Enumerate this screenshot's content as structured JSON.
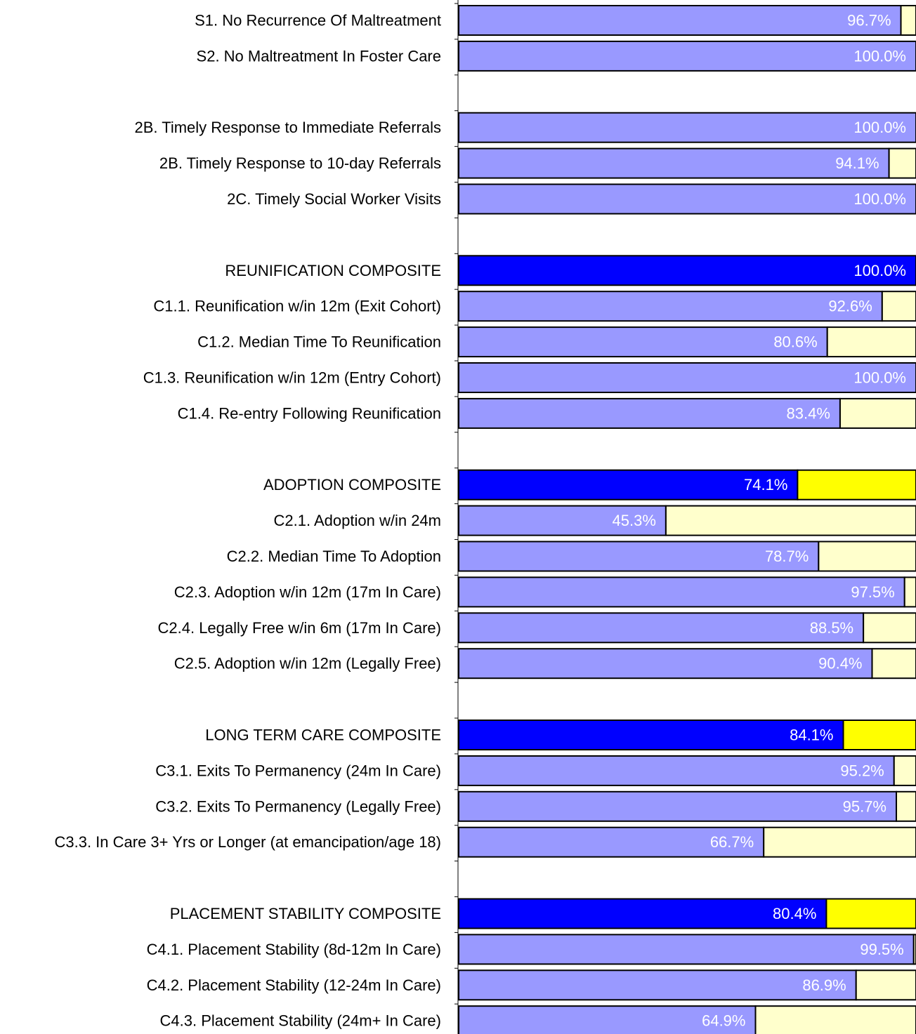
{
  "chart_data": {
    "type": "bar",
    "orientation": "horizontal",
    "stacked": true,
    "xlim": [
      0,
      100
    ],
    "grid": false,
    "legend": "none",
    "colors": {
      "measure_value": "#9999ff",
      "composite_value": "#0000ff",
      "measure_remainder": "#ffffcc",
      "composite_remainder": "#ffff00",
      "measure_label": "#ffffff",
      "composite_label": "#ffffff",
      "category_label": "#000000",
      "bar_border": "#000000"
    },
    "rows": [
      {
        "category": "S1. No Recurrence Of Maltreatment",
        "value": 96.7,
        "label": "96.7%",
        "composite": false
      },
      {
        "category": "S2. No Maltreatment In Foster Care",
        "value": 100.0,
        "label": "100.0%",
        "composite": false
      },
      {
        "gap": true
      },
      {
        "category": "2B. Timely Response to Immediate Referrals",
        "value": 100.0,
        "label": "100.0%",
        "composite": false
      },
      {
        "category": "2B. Timely Response to 10-day Referrals",
        "value": 94.1,
        "label": "94.1%",
        "composite": false
      },
      {
        "category": "2C. Timely Social Worker Visits",
        "value": 100.0,
        "label": "100.0%",
        "composite": false
      },
      {
        "gap": true
      },
      {
        "category": "REUNIFICATION COMPOSITE",
        "value": 100.0,
        "label": "100.0%",
        "composite": true
      },
      {
        "category": "C1.1. Reunification w/in 12m (Exit Cohort)",
        "value": 92.6,
        "label": "92.6%",
        "composite": false
      },
      {
        "category": "C1.2. Median Time To Reunification",
        "value": 80.6,
        "label": "80.6%",
        "composite": false
      },
      {
        "category": "C1.3. Reunification w/in 12m (Entry Cohort)",
        "value": 100.0,
        "label": "100.0%",
        "composite": false
      },
      {
        "category": "C1.4. Re-entry Following Reunification",
        "value": 83.4,
        "label": "83.4%",
        "composite": false
      },
      {
        "gap": true
      },
      {
        "category": "ADOPTION COMPOSITE",
        "value": 74.1,
        "label": "74.1%",
        "composite": true
      },
      {
        "category": "C2.1. Adoption w/in 24m",
        "value": 45.3,
        "label": "45.3%",
        "composite": false
      },
      {
        "category": "C2.2. Median Time To Adoption",
        "value": 78.7,
        "label": "78.7%",
        "composite": false
      },
      {
        "category": "C2.3. Adoption w/in 12m (17m In Care)",
        "value": 97.5,
        "label": "97.5%",
        "composite": false
      },
      {
        "category": "C2.4. Legally Free w/in 6m (17m In Care)",
        "value": 88.5,
        "label": "88.5%",
        "composite": false
      },
      {
        "category": "C2.5. Adoption w/in 12m (Legally Free)",
        "value": 90.4,
        "label": "90.4%",
        "composite": false
      },
      {
        "gap": true
      },
      {
        "category": "LONG TERM CARE COMPOSITE",
        "value": 84.1,
        "label": "84.1%",
        "composite": true
      },
      {
        "category": "C3.1. Exits To Permanency (24m In Care)",
        "value": 95.2,
        "label": "95.2%",
        "composite": false
      },
      {
        "category": "C3.2. Exits To Permanency (Legally Free)",
        "value": 95.7,
        "label": "95.7%",
        "composite": false
      },
      {
        "category": "C3.3. In Care 3+ Yrs or Longer (at emancipation/age 18)",
        "value": 66.7,
        "label": "66.7%",
        "composite": false
      },
      {
        "gap": true
      },
      {
        "category": "PLACEMENT STABILITY COMPOSITE",
        "value": 80.4,
        "label": "80.4%",
        "composite": true
      },
      {
        "category": "C4.1. Placement Stability (8d-12m In Care)",
        "value": 99.5,
        "label": "99.5%",
        "composite": false
      },
      {
        "category": "C4.2. Placement Stability (12-24m In Care)",
        "value": 86.9,
        "label": "86.9%",
        "composite": false
      },
      {
        "category": "C4.3. Placement Stability (24m+ In Care)",
        "value": 64.9,
        "label": "64.9%",
        "composite": false
      }
    ]
  }
}
